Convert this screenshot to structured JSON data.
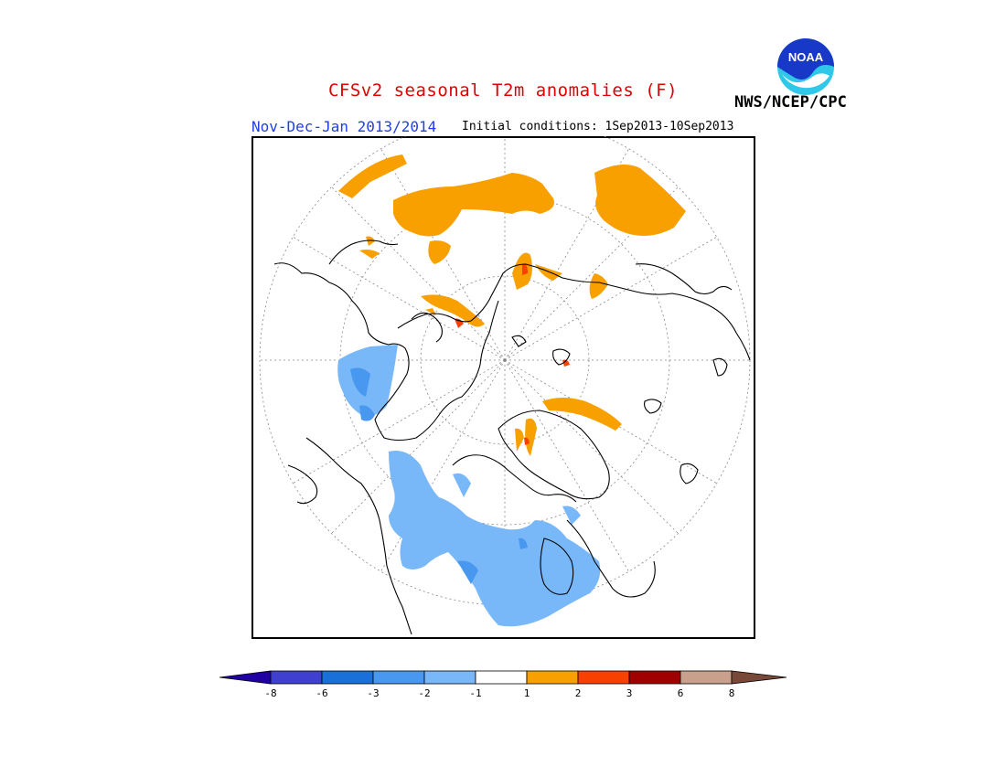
{
  "title": "CFSv2 seasonal T2m anomalies (F)",
  "subtitle_left": "Nov-Dec-Jan 2013/2014",
  "subtitle_right": "Initial conditions: 1Sep2013-10Sep2013",
  "organization": "NWS/NCEP/CPC",
  "logo_text": "NOAA",
  "colors": {
    "title": "#e00000",
    "subtitle_left": "#2040e0",
    "text": "#000000",
    "warm_1_2": "#f8a000",
    "warm_2_3": "#f84000",
    "warm_3_6": "#a00000",
    "cool_m1_m2": "#78b8f8",
    "cool_m2_m3": "#4898f0",
    "cool_m3_m6": "#1860d0",
    "noaa_blue": "#1838c8",
    "noaa_cyan": "#30c8e8"
  },
  "colorbar": {
    "labels": [
      "-8",
      "-6",
      "-3",
      "-2",
      "-1",
      "1",
      "2",
      "3",
      "6",
      "8"
    ],
    "colors": [
      "#2000a0",
      "#4040d0",
      "#1870d8",
      "#4898f0",
      "#78b8f8",
      "#ffffff",
      "#f8a000",
      "#f84000",
      "#a00000",
      "#c8a08c",
      "#784838"
    ]
  }
}
